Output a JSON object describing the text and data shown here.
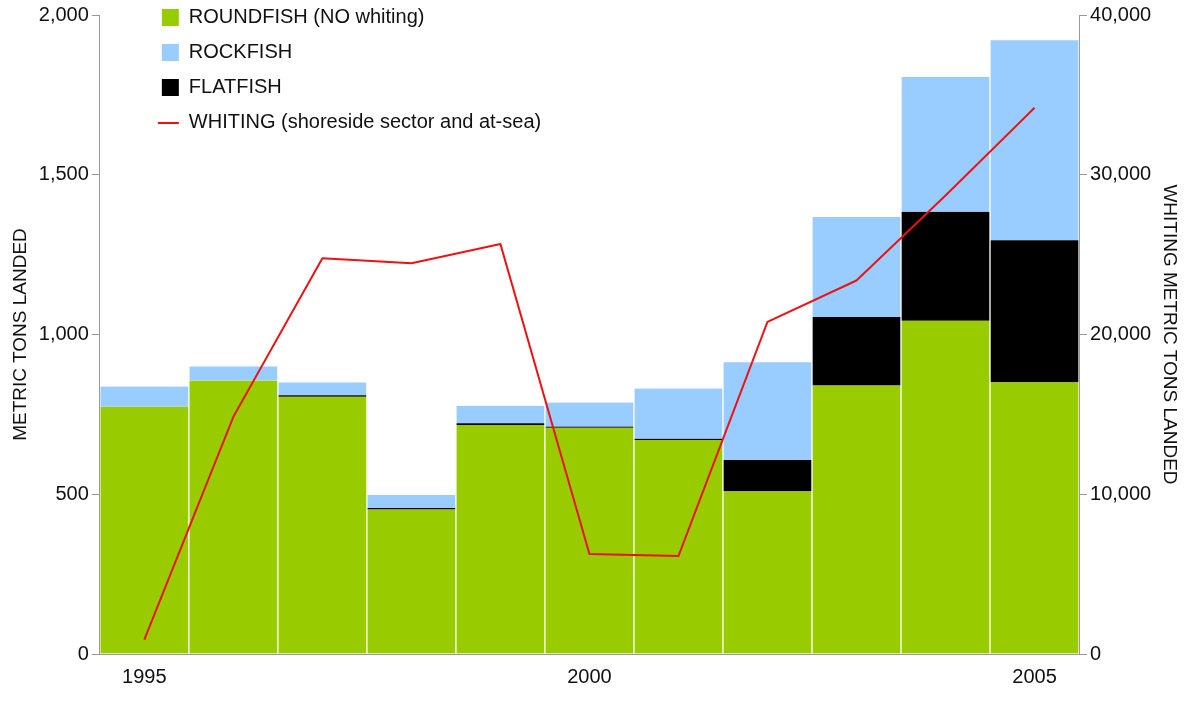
{
  "chart_data": {
    "type": "bar",
    "stacked": true,
    "ylabel": "METRIC TONS LANDED",
    "y2label": "WHITING METRIC TONS LANDED",
    "categories": [
      "1995",
      null,
      null,
      null,
      null,
      "2000",
      null,
      null,
      null,
      null,
      "2005"
    ],
    "series": [
      {
        "name": "ROUNDFISH (NO whiting)",
        "color": "#99cc00",
        "values": [
          774,
          856,
          805,
          452,
          717,
          708,
          670,
          509,
          840,
          1043,
          850
        ]
      },
      {
        "name": "FLATFISH",
        "color": "#000000",
        "values": [
          0,
          0,
          5,
          5,
          5,
          4,
          4,
          98,
          215,
          341,
          445
        ]
      },
      {
        "name": "ROCKFISH",
        "color": "#99ccff",
        "values": [
          63,
          44,
          40,
          41,
          55,
          75,
          157,
          306,
          313,
          422,
          626
        ]
      },
      {
        "name": "WHITING (shoreside sector and at-sea)",
        "type": "line",
        "axis": "y2",
        "color": "#ee1111",
        "values": [
          900,
          14850,
          24770,
          24460,
          25660,
          6260,
          6130,
          20790,
          23380,
          28700,
          34190
        ]
      }
    ],
    "ylim": [
      0,
      2000
    ],
    "yticks": [
      0,
      {
        "value": 500,
        "label": "500"
      },
      {
        "value": 1000,
        "label": "1,000"
      },
      {
        "value": 1500,
        "label": "1,500"
      },
      {
        "value": 2000,
        "label": "2,000"
      }
    ],
    "y2lim": [
      0,
      40000
    ],
    "y2ticks": [
      0,
      {
        "value": 10000,
        "label": "10,000"
      },
      {
        "value": 20000,
        "label": "20,000"
      },
      {
        "value": 30000,
        "label": "30,000"
      },
      {
        "value": 40000,
        "label": "40,000"
      }
    ],
    "grid": false,
    "legend": "top left",
    "marker": "none"
  }
}
